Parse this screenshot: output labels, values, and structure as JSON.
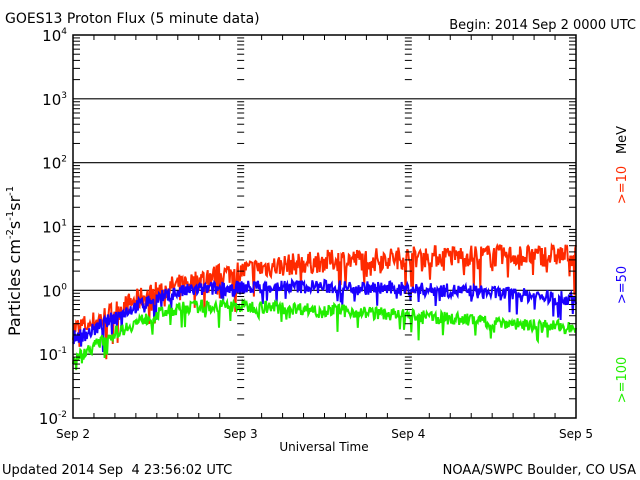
{
  "chart_data": {
    "type": "line",
    "title": "GOES13 Proton Flux (5 minute data)",
    "subtitle": "Begin: 2014 Sep 2 0000 UTC",
    "xlabel": "Universal Time",
    "ylabel_main": "Particles cm",
    "ylabel_parts": [
      "Particles cm",
      "-2",
      "s",
      "-1",
      "sr",
      "-1"
    ],
    "ylim": [
      0.01,
      10000
    ],
    "yscale": "log",
    "y_ticks": [
      {
        "base": "10",
        "exp": "4",
        "value": 10000
      },
      {
        "base": "10",
        "exp": "3",
        "value": 1000
      },
      {
        "base": "10",
        "exp": "2",
        "value": 100
      },
      {
        "base": "10",
        "exp": "1",
        "value": 10
      },
      {
        "base": "10",
        "exp": "0",
        "value": 1
      },
      {
        "base": "10",
        "exp": "-1",
        "value": 0.1
      },
      {
        "base": "10",
        "exp": "-2",
        "value": 0.01
      }
    ],
    "x_range_days": [
      0,
      3
    ],
    "x_ticks": [
      {
        "label": "Sep 2",
        "day": 0
      },
      {
        "label": "Sep 3",
        "day": 1
      },
      {
        "label": "Sep 4",
        "day": 2
      },
      {
        "label": "Sep 5",
        "day": 3
      }
    ],
    "threshold_line": 10,
    "legend_unit": "MeV",
    "series": [
      {
        "name": ">=10",
        "color": "#ff2a00",
        "points": [
          [
            0,
            0.25
          ],
          [
            0.1,
            0.3
          ],
          [
            0.2,
            0.4
          ],
          [
            0.3,
            0.55
          ],
          [
            0.4,
            0.75
          ],
          [
            0.5,
            0.95
          ],
          [
            0.6,
            1.15
          ],
          [
            0.7,
            1.35
          ],
          [
            0.8,
            1.6
          ],
          [
            0.9,
            1.8
          ],
          [
            1.0,
            2.0
          ],
          [
            1.2,
            2.4
          ],
          [
            1.4,
            2.7
          ],
          [
            1.6,
            3.0
          ],
          [
            1.8,
            3.1
          ],
          [
            2.0,
            3.3
          ],
          [
            2.2,
            3.4
          ],
          [
            2.4,
            3.5
          ],
          [
            2.6,
            3.5
          ],
          [
            2.8,
            3.5
          ],
          [
            3.0,
            3.6
          ]
        ]
      },
      {
        "name": ">=50",
        "color": "#1a00ff",
        "points": [
          [
            0,
            0.18
          ],
          [
            0.1,
            0.22
          ],
          [
            0.2,
            0.32
          ],
          [
            0.3,
            0.45
          ],
          [
            0.4,
            0.6
          ],
          [
            0.5,
            0.75
          ],
          [
            0.6,
            0.9
          ],
          [
            0.7,
            1.0
          ],
          [
            0.8,
            1.05
          ],
          [
            0.9,
            1.08
          ],
          [
            1.0,
            1.1
          ],
          [
            1.2,
            1.15
          ],
          [
            1.4,
            1.15
          ],
          [
            1.6,
            1.12
          ],
          [
            1.8,
            1.08
          ],
          [
            2.0,
            1.05
          ],
          [
            2.2,
            1.0
          ],
          [
            2.4,
            0.95
          ],
          [
            2.6,
            0.88
          ],
          [
            2.8,
            0.8
          ],
          [
            3.0,
            0.72
          ]
        ]
      },
      {
        "name": ">=100",
        "color": "#22ee00",
        "points": [
          [
            0,
            0.08
          ],
          [
            0.1,
            0.12
          ],
          [
            0.2,
            0.18
          ],
          [
            0.3,
            0.25
          ],
          [
            0.4,
            0.33
          ],
          [
            0.5,
            0.42
          ],
          [
            0.6,
            0.5
          ],
          [
            0.7,
            0.55
          ],
          [
            0.8,
            0.56
          ],
          [
            0.9,
            0.57
          ],
          [
            1.0,
            0.56
          ],
          [
            1.2,
            0.54
          ],
          [
            1.4,
            0.51
          ],
          [
            1.6,
            0.48
          ],
          [
            1.8,
            0.44
          ],
          [
            2.0,
            0.4
          ],
          [
            2.2,
            0.37
          ],
          [
            2.4,
            0.34
          ],
          [
            2.6,
            0.31
          ],
          [
            2.8,
            0.28
          ],
          [
            3.0,
            0.26
          ]
        ]
      }
    ]
  },
  "footer": {
    "updated": "Updated 2014 Sep  4 23:56:02 UTC",
    "credit": "NOAA/SWPC Boulder, CO USA"
  }
}
